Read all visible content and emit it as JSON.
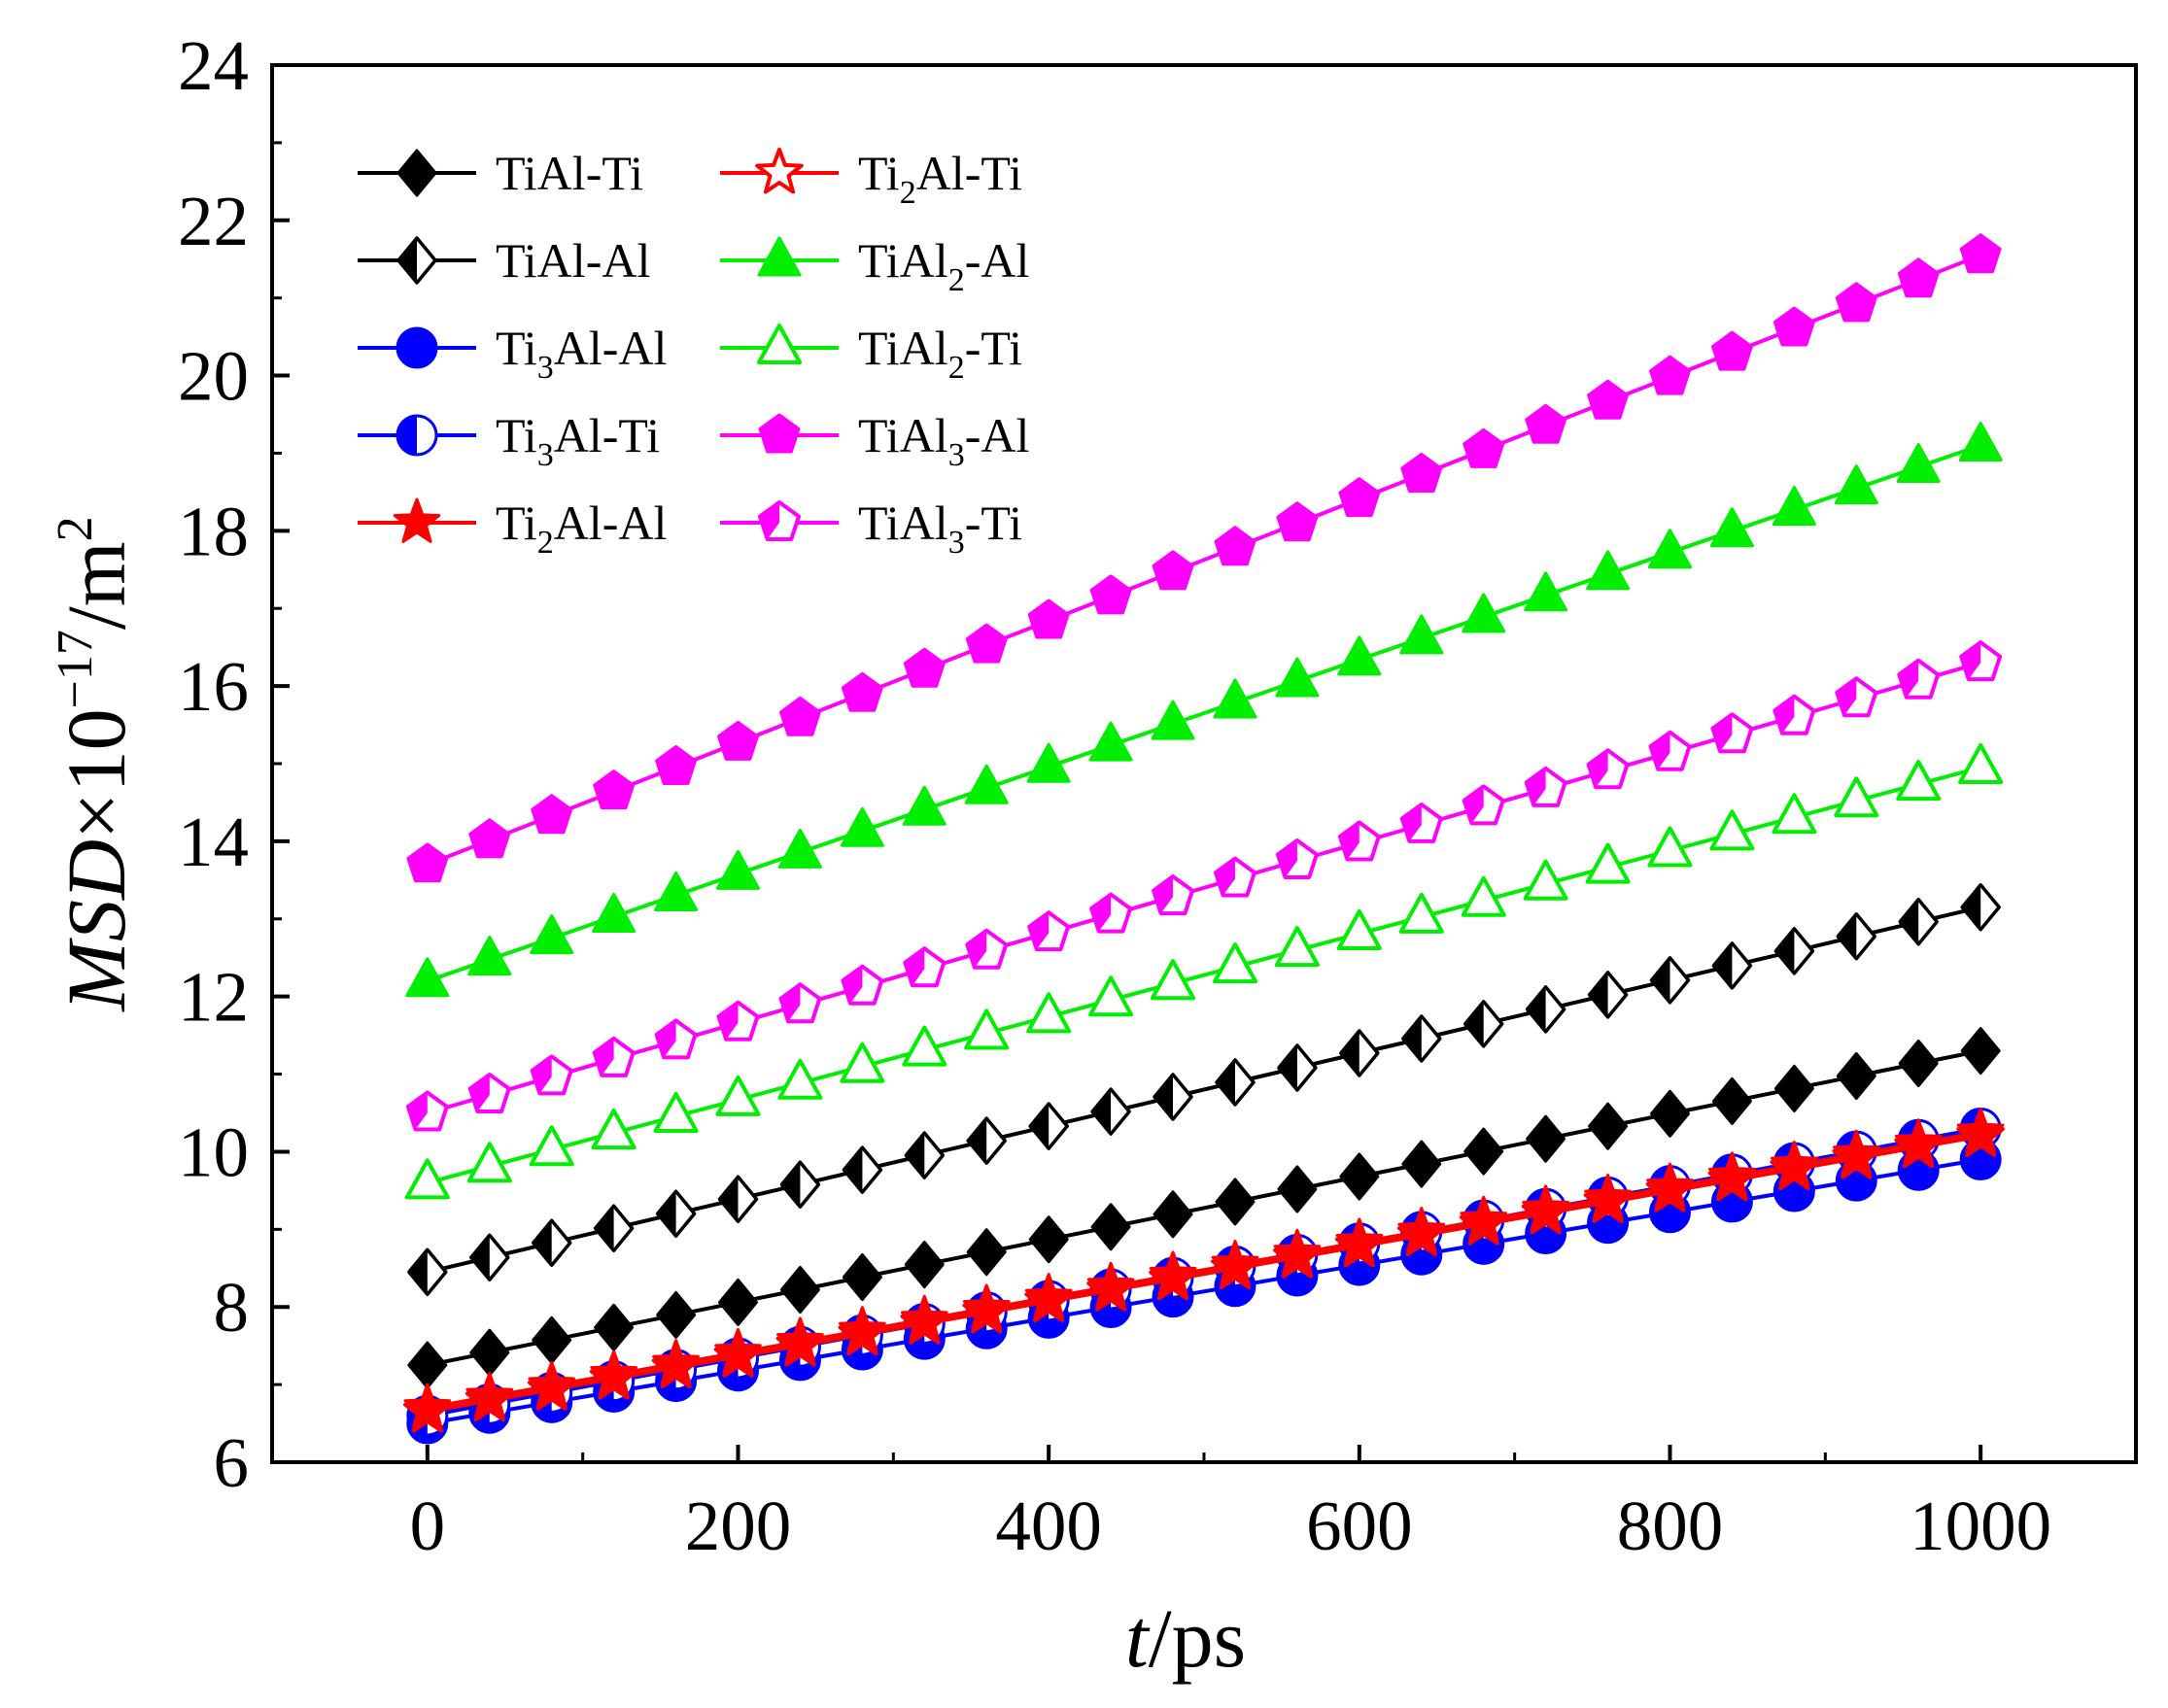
{
  "chart_data": {
    "type": "line",
    "title": "",
    "xlabel": {
      "italic": "t",
      "rest": "/ps"
    },
    "ylabel": {
      "italic": "MSD",
      "rest": "×10",
      "sup": "−17",
      "unit": "/m",
      "unit_sup": "2"
    },
    "xlim": [
      -100,
      1100
    ],
    "ylim": [
      6,
      24
    ],
    "x_ticks": [
      0,
      200,
      400,
      600,
      800,
      1000
    ],
    "y_ticks": [
      6,
      8,
      10,
      12,
      14,
      16,
      18,
      20,
      22,
      24
    ],
    "legend_position": "top-left",
    "x": [
      0,
      40,
      80,
      120,
      160,
      200,
      240,
      280,
      320,
      360,
      400,
      440,
      480,
      520,
      560,
      600,
      640,
      680,
      720,
      760,
      800,
      840,
      880,
      920,
      960,
      1000
    ],
    "series": [
      {
        "name": "TiAl-Ti",
        "base": "TiAl",
        "sub": "",
        "tail": "-Ti",
        "color": "#000000",
        "marker": "diamond",
        "fill": "full",
        "start": 7.25,
        "end": 11.3
      },
      {
        "name": "TiAl-Al",
        "base": "TiAl",
        "sub": "",
        "tail": "-Al",
        "color": "#000000",
        "marker": "diamond",
        "fill": "half",
        "start": 8.45,
        "end": 13.15
      },
      {
        "name": "Ti3Al-Al",
        "base": "Ti",
        "sub": "3",
        "tail": "Al-Al",
        "color": "#0000ff",
        "marker": "circle",
        "fill": "full",
        "start": 6.5,
        "end": 9.9
      },
      {
        "name": "Ti3Al-Ti",
        "base": "Ti",
        "sub": "3",
        "tail": "Al-Ti",
        "color": "#0000ff",
        "marker": "circle",
        "fill": "half",
        "start": 6.6,
        "end": 10.3
      },
      {
        "name": "Ti2Al-Al",
        "base": "Ti",
        "sub": "2",
        "tail": "Al-Al",
        "color": "#ff0000",
        "marker": "star",
        "fill": "full",
        "start": 6.7,
        "end": 10.25
      },
      {
        "name": "Ti2Al-Ti",
        "base": "Ti",
        "sub": "2",
        "tail": "Al-Ti",
        "color": "#ff0000",
        "marker": "star",
        "fill": "open",
        "start": 6.65,
        "end": 10.2
      },
      {
        "name": "TiAl2-Al",
        "base": "TiAl",
        "sub": "2",
        "tail": "-Al",
        "color": "#00ee00",
        "marker": "triangle",
        "fill": "full",
        "start": 12.2,
        "end": 19.1
      },
      {
        "name": "TiAl2-Ti",
        "base": "TiAl",
        "sub": "2",
        "tail": "-Ti",
        "color": "#00ee00",
        "marker": "triangle",
        "fill": "open",
        "start": 9.6,
        "end": 14.95
      },
      {
        "name": "TiAl3-Al",
        "base": "TiAl",
        "sub": "3",
        "tail": "-Al",
        "color": "#ff00ff",
        "marker": "pentagon",
        "fill": "full",
        "start": 13.7,
        "end": 21.55
      },
      {
        "name": "TiAl3-Ti",
        "base": "TiAl",
        "sub": "3",
        "tail": "-Ti",
        "color": "#ff00ff",
        "marker": "pentagon",
        "fill": "open",
        "start": 10.5,
        "end": 16.3
      }
    ],
    "legend_order": [
      [
        "TiAl-Ti",
        "Ti2Al-Ti"
      ],
      [
        "TiAl-Al",
        "TiAl2-Al"
      ],
      [
        "Ti3Al-Al",
        "TiAl2-Ti"
      ],
      [
        "Ti3Al-Ti",
        "TiAl3-Al"
      ],
      [
        "Ti2Al-Al",
        "TiAl3-Ti"
      ]
    ]
  }
}
